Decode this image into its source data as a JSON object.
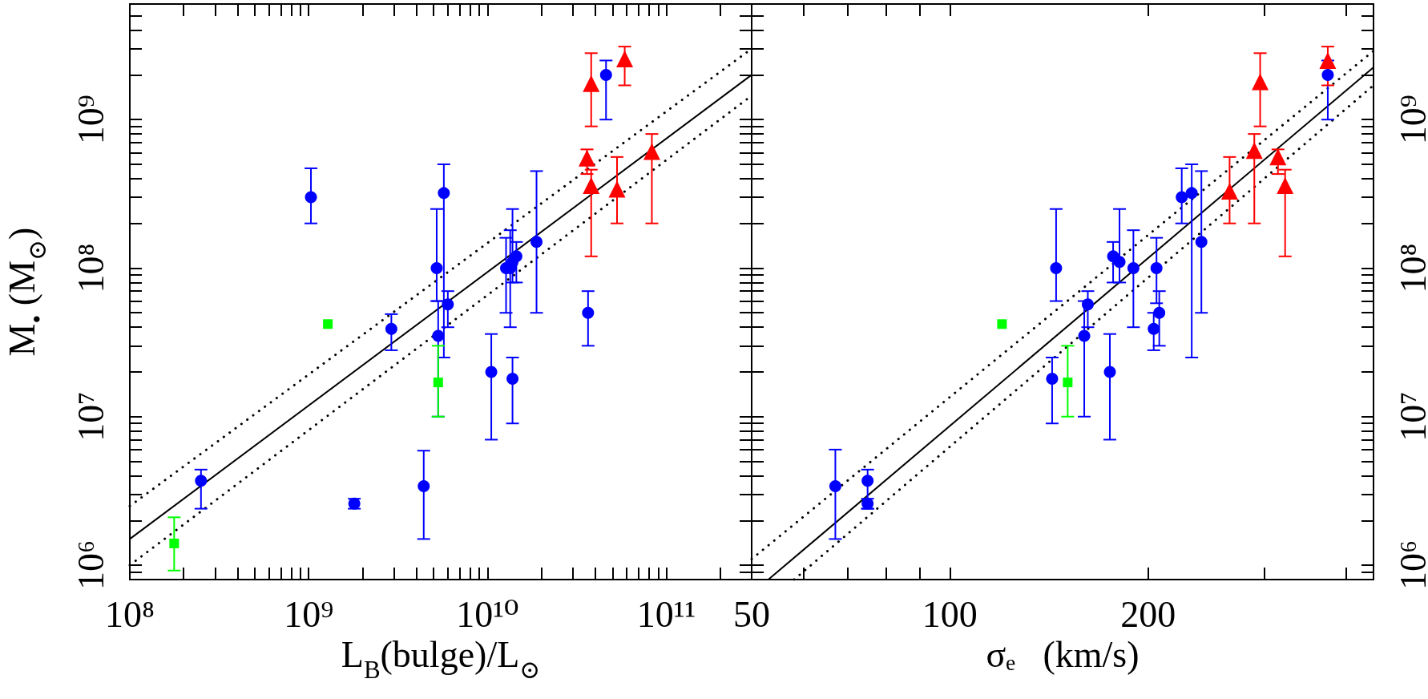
{
  "chart_data": [
    {
      "type": "scatter",
      "xlabel": "L$_{B}$(bulge)/L$_{⊙}$",
      "ylabel": "M$_{•}$ (M$_{⊙}$)",
      "log": "xy",
      "xlim": [
        100000000.0,
        300000000000.0
      ],
      "ylim": [
        800000.0,
        6000000000.0
      ],
      "xticks": [
        {
          "value": 100000000.0,
          "label": "10⁸"
        },
        {
          "value": 200000000.0,
          "label": null
        },
        {
          "value": 300000000.0,
          "label": null
        },
        {
          "value": 400000000.0,
          "label": null
        },
        {
          "value": 500000000.0,
          "label": null
        },
        {
          "value": 600000000.0,
          "label": null
        },
        {
          "value": 700000000.0,
          "label": null
        },
        {
          "value": 800000000.0,
          "label": null
        },
        {
          "value": 900000000.0,
          "label": null
        },
        {
          "value": 1000000000.0,
          "label": "10⁹"
        },
        {
          "value": 2000000000.0,
          "label": null
        },
        {
          "value": 3000000000.0,
          "label": null
        },
        {
          "value": 4000000000.0,
          "label": null
        },
        {
          "value": 5000000000.0,
          "label": null
        },
        {
          "value": 6000000000.0,
          "label": null
        },
        {
          "value": 7000000000.0,
          "label": null
        },
        {
          "value": 8000000000.0,
          "label": null
        },
        {
          "value": 9000000000.0,
          "label": null
        },
        {
          "value": 10000000000.0,
          "label": "10¹⁰"
        },
        {
          "value": 20000000000.0,
          "label": null
        },
        {
          "value": 30000000000.0,
          "label": null
        },
        {
          "value": 40000000000.0,
          "label": null
        },
        {
          "value": 50000000000.0,
          "label": null
        },
        {
          "value": 60000000000.0,
          "label": null
        },
        {
          "value": 70000000000.0,
          "label": null
        },
        {
          "value": 80000000000.0,
          "label": null
        },
        {
          "value": 90000000000.0,
          "label": null
        },
        {
          "value": 100000000000.0,
          "label": "10¹¹"
        },
        {
          "value": 200000000000.0,
          "label": null
        }
      ],
      "yticks": [
        {
          "value": 900000.0,
          "label": null
        },
        {
          "value": 1000000.0,
          "label": "10⁶"
        },
        {
          "value": 2000000.0,
          "label": null
        },
        {
          "value": 3000000.0,
          "label": null
        },
        {
          "value": 4000000.0,
          "label": null
        },
        {
          "value": 5000000.0,
          "label": null
        },
        {
          "value": 6000000.0,
          "label": null
        },
        {
          "value": 7000000.0,
          "label": null
        },
        {
          "value": 8000000.0,
          "label": null
        },
        {
          "value": 9000000.0,
          "label": null
        },
        {
          "value": 10000000.0,
          "label": "10⁷"
        },
        {
          "value": 20000000.0,
          "label": null
        },
        {
          "value": 30000000.0,
          "label": null
        },
        {
          "value": 40000000.0,
          "label": null
        },
        {
          "value": 50000000.0,
          "label": null
        },
        {
          "value": 60000000.0,
          "label": null
        },
        {
          "value": 70000000.0,
          "label": null
        },
        {
          "value": 80000000.0,
          "label": null
        },
        {
          "value": 90000000.0,
          "label": null
        },
        {
          "value": 100000000.0,
          "label": "10⁸"
        },
        {
          "value": 200000000.0,
          "label": null
        },
        {
          "value": 300000000.0,
          "label": null
        },
        {
          "value": 400000000.0,
          "label": null
        },
        {
          "value": 500000000.0,
          "label": null
        },
        {
          "value": 600000000.0,
          "label": null
        },
        {
          "value": 700000000.0,
          "label": null
        },
        {
          "value": 800000000.0,
          "label": null
        },
        {
          "value": 900000000.0,
          "label": null
        },
        {
          "value": 1000000000.0,
          "label": "10⁹"
        },
        {
          "value": 2000000000.0,
          "label": null
        },
        {
          "value": 3000000000.0,
          "label": null
        },
        {
          "value": 4000000000.0,
          "label": null
        },
        {
          "value": 5000000000.0,
          "label": null
        }
      ],
      "series": [
        {
          "type": "line",
          "color": "#000000",
          "line_style": "solid",
          "x": [
            100000000.0,
            300000000000.0
          ],
          "values": [
            1500000.0,
            2000000000.0
          ]
        },
        {
          "type": "line",
          "color": "#000000",
          "line_style": "dotted",
          "x": [
            100000000.0,
            300000000000.0
          ],
          "values": [
            2500000.0,
            3000000000.0
          ]
        },
        {
          "type": "line",
          "color": "#000000",
          "line_style": "dotted",
          "x": [
            100000000.0,
            300000000000.0
          ],
          "values": [
            1000000.0,
            1450000000.0
          ]
        },
        {
          "marker": "circle",
          "color": "#0000ff",
          "x": [
            1030000000.0,
            5200000000.0,
            5700000000.0,
            5300000000.0,
            2900000000.0,
            6000000000.0,
            12700000000.0,
            13400000000.0,
            14500000000.0,
            18800000000.0,
            36500000000.0,
            46000000000.0,
            250000000.0,
            1800000000.0,
            4400000000.0,
            10500000000.0,
            13800000000.0,
            13800000000.0
          ],
          "values": [
            300000000.0,
            100000000.0,
            320000000.0,
            35000000.0,
            39000000.0,
            57000000.0,
            100000000.0,
            100000000.0,
            120000000.0,
            150000000.0,
            50000000.0,
            2000000000.0,
            3700000.0,
            2600000.0,
            3400000.0,
            20000000.0,
            18000000.0,
            110000000.0
          ],
          "errors": [
            [
              200000000.0,
              470000000.0
            ],
            [
              60000000.0,
              250000000.0
            ],
            [
              25000000.0,
              500000000.0
            ],
            [
              10000000.0,
              60000000.0
            ],
            [
              28000000.0,
              49000000.0
            ],
            [
              40000000.0,
              70000000.0
            ],
            [
              50000000.0,
              160000000.0
            ],
            [
              40000000.0,
              180000000.0
            ],
            [
              80000000.0,
              150000000.0
            ],
            [
              50000000.0,
              450000000.0
            ],
            [
              30000000.0,
              70000000.0
            ],
            [
              1000000000.0,
              2500000000.0
            ],
            [
              2400000.0,
              4400000.0
            ],
            [
              2400000.0,
              2800000.0
            ],
            [
              1500000.0,
              5900000.0
            ],
            [
              7000000.0,
              36000000.0
            ],
            [
              9000000.0,
              25000000.0
            ],
            [
              80000000.0,
              250000000.0
            ]
          ]
        },
        {
          "marker": "square",
          "color": "#00ff00",
          "x": [
            1280000000.0,
            5300000000.0,
            177000000.0
          ],
          "values": [
            42000000.0,
            17000000.0,
            1400000.0
          ],
          "errors": [
            null,
            [
              10000000.0,
              30000000.0
            ],
            [
              920000.0,
              2100000.0
            ]
          ]
        },
        {
          "marker": "triangle",
          "color": "#ff0000",
          "x": [
            38000000000.0,
            58500000000.0,
            36000000000.0,
            38000000000.0,
            53000000000.0,
            83000000000.0
          ],
          "values": [
            1750000000.0,
            2560000000.0,
            550000000.0,
            360000000.0,
            340000000.0,
            610000000.0
          ],
          "errors": [
            [
              900000000.0,
              2800000000.0
            ],
            [
              1700000000.0,
              3100000000.0
            ],
            [
              430000000.0,
              630000000.0
            ],
            [
              120000000.0,
              460000000.0
            ],
            [
              200000000.0,
              560000000.0
            ],
            [
              200000000.0,
              800000000.0
            ]
          ]
        }
      ]
    },
    {
      "type": "scatter",
      "xlabel": "σₑ   (km/s)",
      "log": "xy",
      "xlim": [
        50,
        440
      ],
      "ylim": [
        800000.0,
        6000000000.0
      ],
      "xticks": [
        50,
        {
          "value": 60,
          "label": null
        },
        {
          "value": 70,
          "label": null
        },
        {
          "value": 80,
          "label": null
        },
        {
          "value": 90,
          "label": null
        },
        100,
        200,
        {
          "value": 300,
          "label": null
        },
        {
          "value": 400,
          "label": null
        }
      ],
      "yticks": [
        {
          "value": 900000.0,
          "label": null
        },
        {
          "value": 1000000.0,
          "label": "10⁶"
        },
        {
          "value": 2000000.0,
          "label": null
        },
        {
          "value": 3000000.0,
          "label": null
        },
        {
          "value": 4000000.0,
          "label": null
        },
        {
          "value": 5000000.0,
          "label": null
        },
        {
          "value": 6000000.0,
          "label": null
        },
        {
          "value": 7000000.0,
          "label": null
        },
        {
          "value": 8000000.0,
          "label": null
        },
        {
          "value": 9000000.0,
          "label": null
        },
        {
          "value": 10000000.0,
          "label": "10⁷"
        },
        {
          "value": 20000000.0,
          "label": null
        },
        {
          "value": 30000000.0,
          "label": null
        },
        {
          "value": 40000000.0,
          "label": null
        },
        {
          "value": 50000000.0,
          "label": null
        },
        {
          "value": 60000000.0,
          "label": null
        },
        {
          "value": 70000000.0,
          "label": null
        },
        {
          "value": 80000000.0,
          "label": null
        },
        {
          "value": 90000000.0,
          "label": null
        },
        {
          "value": 100000000.0,
          "label": "10⁸"
        },
        {
          "value": 200000000.0,
          "label": null
        },
        {
          "value": 300000000.0,
          "label": null
        },
        {
          "value": 400000000.0,
          "label": null
        },
        {
          "value": 500000000.0,
          "label": null
        },
        {
          "value": 600000000.0,
          "label": null
        },
        {
          "value": 700000000.0,
          "label": null
        },
        {
          "value": 800000000.0,
          "label": null
        },
        {
          "value": 900000000.0,
          "label": null
        },
        {
          "value": 1000000000.0,
          "label": "10⁹"
        },
        {
          "value": 2000000000.0,
          "label": null
        },
        {
          "value": 3000000000.0,
          "label": null
        },
        {
          "value": 4000000000.0,
          "label": null
        },
        {
          "value": 5000000000.0,
          "label": null
        }
      ],
      "series": [
        {
          "type": "line",
          "color": "#000000",
          "line_style": "solid",
          "x": [
            53,
            440
          ],
          "values": [
            800000.0,
            2250000000.0
          ]
        },
        {
          "type": "line",
          "color": "#000000",
          "line_style": "dotted",
          "x": [
            50,
            440
          ],
          "values": [
            1100000.0,
            2900000000.0
          ]
        },
        {
          "type": "line",
          "color": "#000000",
          "line_style": "dotted",
          "x": [
            58,
            440
          ],
          "values": [
            800000.0,
            1700000000.0
          ]
        },
        {
          "marker": "circle",
          "color": "#0000ff",
          "x": [
            145,
            162,
            160,
            177,
            181,
            190,
            206,
            208,
            204,
            225,
            233,
            241,
            375,
            143,
            175,
            67,
            75,
            75
          ],
          "values": [
            100000000.0,
            57000000.0,
            35000000.0,
            120000000.0,
            110000000.0,
            100000000.0,
            100000000.0,
            50000000.0,
            39000000.0,
            300000000.0,
            320000000.0,
            150000000.0,
            2000000000.0,
            18000000.0,
            20000000.0,
            3400000.0,
            3700000.0,
            2600000.0
          ],
          "errors": [
            [
              60000000.0,
              250000000.0
            ],
            [
              40000000.0,
              70000000.0
            ],
            [
              10000000.0,
              60000000.0
            ],
            [
              80000000.0,
              150000000.0
            ],
            [
              80000000.0,
              250000000.0
            ],
            [
              40000000.0,
              180000000.0
            ],
            [
              58000000.0,
              160000000.0
            ],
            [
              30000000.0,
              70000000.0
            ],
            [
              28000000.0,
              50000000.0
            ],
            [
              200000000.0,
              470000000.0
            ],
            [
              25000000.0,
              500000000.0
            ],
            [
              50000000.0,
              450000000.0
            ],
            [
              1000000000.0,
              2500000000.0
            ],
            [
              9000000.0,
              25000000.0
            ],
            [
              7000000.0,
              36000000.0
            ],
            [
              1500000.0,
              6000000.0
            ],
            [
              2400000.0,
              4400000.0
            ],
            [
              2400000.0,
              2800000.0
            ]
          ]
        },
        {
          "marker": "square",
          "color": "#00ff00",
          "x": [
            120,
            151
          ],
          "values": [
            42000000.0,
            17000000.0
          ],
          "errors": [
            null,
            [
              10000000.0,
              30000000.0
            ]
          ]
        },
        {
          "marker": "triangle",
          "color": "#ff0000",
          "x": [
            266,
            290,
            296,
            315,
            323,
            375
          ],
          "values": [
            330000000.0,
            620000000.0,
            1800000000.0,
            560000000.0,
            360000000.0,
            2500000000.0
          ],
          "errors": [
            [
              200000000.0,
              560000000.0
            ],
            [
              200000000.0,
              800000000.0
            ],
            [
              900000000.0,
              2800000000.0
            ],
            [
              430000000.0,
              630000000.0
            ],
            [
              120000000.0,
              460000000.0
            ],
            [
              1700000000.0,
              3100000000.0
            ]
          ]
        }
      ]
    }
  ]
}
